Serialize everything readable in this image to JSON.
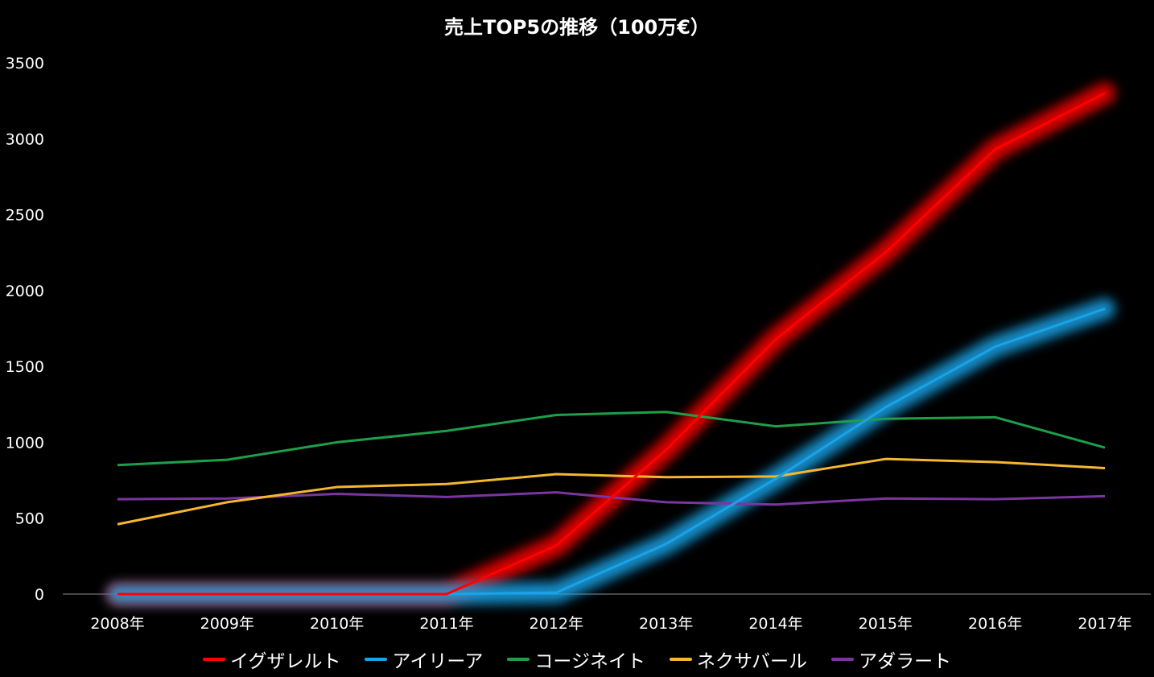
{
  "chart_data": {
    "type": "line",
    "title": "売上TOP5の推移（100万€）",
    "xlabel": "",
    "ylabel": "",
    "categories": [
      "2008年",
      "2009年",
      "2010年",
      "2011年",
      "2012年",
      "2013年",
      "2014年",
      "2015年",
      "2016年",
      "2017年"
    ],
    "ylim": [
      0,
      3500
    ],
    "yticks": [
      0,
      500,
      1000,
      1500,
      2000,
      2500,
      3000,
      3500
    ],
    "grid": false,
    "legend_position": "bottom",
    "background": "#000000",
    "series": [
      {
        "name": "イグザレルト",
        "color": "#ff0000",
        "glow": true,
        "values": [
          0,
          0,
          0,
          0,
          320,
          950,
          1680,
          2250,
          2930,
          3300
        ]
      },
      {
        "name": "アイリーア",
        "color": "#1aa3e8",
        "glow": true,
        "values": [
          0,
          0,
          0,
          0,
          10,
          330,
          760,
          1230,
          1630,
          1880
        ]
      },
      {
        "name": "コージネイト",
        "color": "#1f9e4a",
        "glow": false,
        "values": [
          850,
          885,
          1000,
          1075,
          1180,
          1200,
          1105,
          1155,
          1165,
          965
        ]
      },
      {
        "name": "ネクサバール",
        "color": "#f5b731",
        "glow": false,
        "values": [
          460,
          605,
          705,
          725,
          790,
          770,
          775,
          890,
          870,
          830
        ]
      },
      {
        "name": "アダラート",
        "color": "#7a35a0",
        "glow": false,
        "values": [
          625,
          630,
          660,
          640,
          670,
          605,
          590,
          630,
          625,
          645
        ]
      }
    ]
  }
}
